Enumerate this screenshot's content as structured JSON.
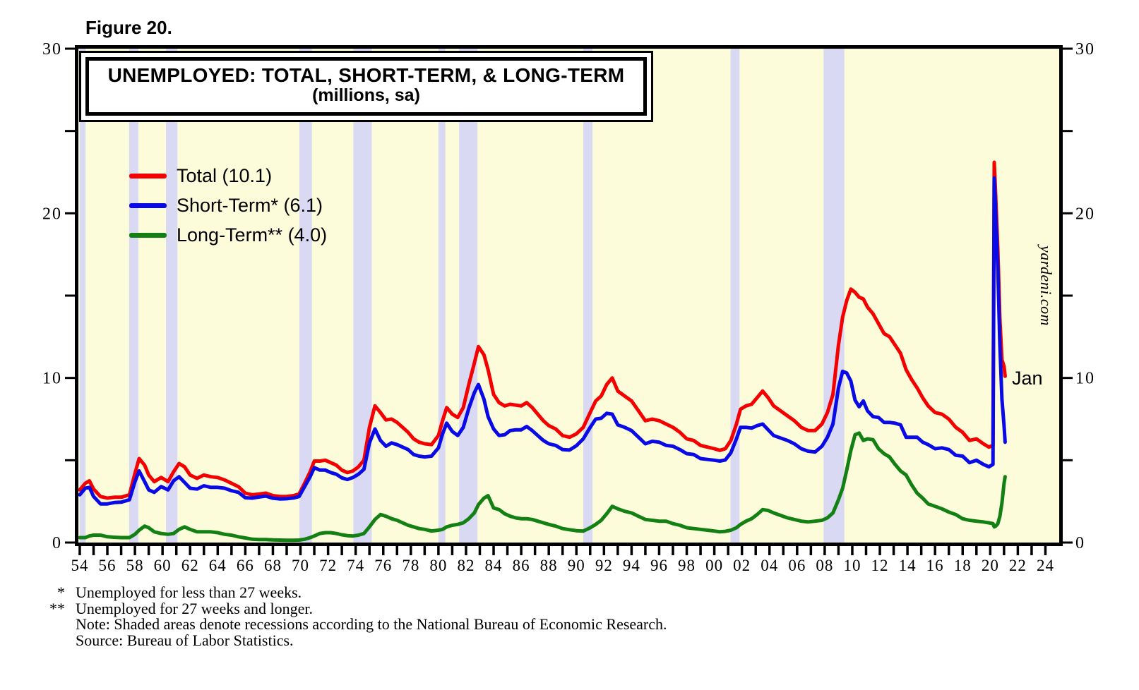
{
  "figure_label": "Figure 20.",
  "title": {
    "line1": "UNEMPLOYED: TOTAL, SHORT-TERM, & LONG-TERM",
    "line2": "(millions, sa)"
  },
  "annotations": {
    "last_point_label": "Jan",
    "watermark": "yardeni.com"
  },
  "footnotes": {
    "items": [
      {
        "marker": "*",
        "text": "Unemployed for less than 27 weeks."
      },
      {
        "marker": "**",
        "text": "Unemployed for 27 weeks and longer."
      },
      {
        "marker": "",
        "text": "Note: Shaded areas denote recessions according to the National Bureau of Economic Research."
      },
      {
        "marker": "",
        "text": "Source: Bureau of Labor Statistics."
      }
    ]
  },
  "colors": {
    "plot_bg": "#FCFCDB",
    "recession_band": "#D9D9F3",
    "axis": "#000000",
    "total": "#F40000",
    "short_term": "#0A0AE6",
    "long_term": "#128012"
  },
  "chart_data": {
    "type": "line",
    "title": "UNEMPLOYED: TOTAL, SHORT-TERM, & LONG-TERM (millions, sa)",
    "ylim": [
      0,
      30
    ],
    "x_range": [
      1953.9,
      2025.0
    ],
    "grid": false,
    "legend_position": "upper-left",
    "y_ticks": [
      0,
      10,
      20,
      30
    ],
    "y_tick_labels": [
      "0",
      "10",
      "20",
      "30"
    ],
    "y_minor_ticks": [
      5,
      15,
      25
    ],
    "x_label_start_year": 1954,
    "x_label_step": 2,
    "x_labels": [
      "54",
      "56",
      "58",
      "60",
      "62",
      "64",
      "66",
      "68",
      "70",
      "72",
      "74",
      "76",
      "78",
      "80",
      "82",
      "84",
      "86",
      "88",
      "90",
      "92",
      "94",
      "96",
      "98",
      "00",
      "02",
      "04",
      "06",
      "08",
      "10",
      "12",
      "14",
      "16",
      "18",
      "20",
      "22",
      "24"
    ],
    "recessions": [
      [
        1954.0,
        1954.42
      ],
      [
        1957.58,
        1958.25
      ],
      [
        1960.25,
        1961.08
      ],
      [
        1969.92,
        1970.83
      ],
      [
        1973.83,
        1975.17
      ],
      [
        1980.0,
        1980.5
      ],
      [
        1981.5,
        1982.83
      ],
      [
        1990.5,
        1991.17
      ],
      [
        2001.17,
        2001.83
      ],
      [
        2007.92,
        2009.42
      ]
    ],
    "x": [
      1954.0,
      1954.4,
      1954.7,
      1955.0,
      1955.5,
      1956.0,
      1956.5,
      1957.0,
      1957.6,
      1958.0,
      1958.3,
      1958.7,
      1959.0,
      1959.4,
      1959.9,
      1960.4,
      1960.8,
      1961.2,
      1961.6,
      1962.0,
      1962.5,
      1963.0,
      1963.5,
      1964.0,
      1964.5,
      1965.0,
      1965.5,
      1966.0,
      1966.5,
      1967.0,
      1967.5,
      1968.0,
      1968.5,
      1969.0,
      1969.5,
      1969.9,
      1970.3,
      1970.7,
      1971.0,
      1971.4,
      1971.8,
      1972.2,
      1972.6,
      1973.0,
      1973.4,
      1973.8,
      1974.2,
      1974.6,
      1975.0,
      1975.4,
      1975.8,
      1976.2,
      1976.6,
      1977.0,
      1977.4,
      1977.8,
      1978.2,
      1978.6,
      1979.0,
      1979.5,
      1980.0,
      1980.3,
      1980.6,
      1981.0,
      1981.4,
      1981.8,
      1982.2,
      1982.6,
      1982.9,
      1983.3,
      1983.6,
      1984.0,
      1984.4,
      1984.8,
      1985.2,
      1985.6,
      1986.0,
      1986.4,
      1986.8,
      1987.2,
      1987.6,
      1988.0,
      1988.5,
      1989.0,
      1989.5,
      1990.0,
      1990.5,
      1991.0,
      1991.4,
      1991.8,
      1992.2,
      1992.6,
      1993.0,
      1993.5,
      1994.0,
      1994.5,
      1995.0,
      1995.5,
      1996.0,
      1996.5,
      1997.0,
      1997.5,
      1998.0,
      1998.5,
      1999.0,
      1999.5,
      2000.0,
      2000.4,
      2000.8,
      2001.2,
      2001.6,
      2001.9,
      2002.3,
      2002.7,
      2003.1,
      2003.5,
      2003.9,
      2004.3,
      2004.8,
      2005.3,
      2005.8,
      2006.3,
      2006.8,
      2007.3,
      2007.8,
      2008.2,
      2008.6,
      2009.0,
      2009.3,
      2009.6,
      2009.9,
      2010.2,
      2010.5,
      2010.8,
      2011.1,
      2011.5,
      2011.9,
      2012.3,
      2012.7,
      2013.1,
      2013.5,
      2013.9,
      2014.3,
      2014.7,
      2015.1,
      2015.5,
      2016.0,
      2016.5,
      2017.0,
      2017.5,
      2018.0,
      2018.5,
      2019.0,
      2019.5,
      2019.9,
      2020.2,
      2020.29,
      2020.4,
      2020.55,
      2020.7,
      2020.85,
      2021.0,
      2021.08
    ],
    "series": [
      {
        "name": "total",
        "label": "Total (10.1)",
        "latest_value": 10.1,
        "color": "#F40000",
        "values": [
          3.2,
          3.6,
          3.75,
          3.25,
          2.8,
          2.7,
          2.75,
          2.75,
          2.9,
          4.2,
          5.1,
          4.7,
          4.1,
          3.7,
          3.95,
          3.7,
          4.3,
          4.8,
          4.6,
          4.1,
          3.9,
          4.1,
          4.0,
          3.95,
          3.8,
          3.6,
          3.4,
          3.0,
          2.9,
          2.95,
          3.0,
          2.85,
          2.8,
          2.8,
          2.85,
          2.95,
          3.6,
          4.3,
          4.95,
          4.95,
          5.0,
          4.85,
          4.7,
          4.4,
          4.25,
          4.35,
          4.6,
          5.0,
          7.0,
          8.3,
          7.9,
          7.45,
          7.5,
          7.3,
          7.0,
          6.7,
          6.3,
          6.1,
          6.0,
          5.95,
          6.5,
          7.4,
          8.2,
          7.8,
          7.6,
          8.2,
          9.6,
          10.9,
          11.9,
          11.4,
          10.5,
          9.0,
          8.5,
          8.3,
          8.4,
          8.35,
          8.3,
          8.5,
          8.2,
          7.8,
          7.4,
          7.1,
          6.9,
          6.5,
          6.4,
          6.6,
          7.0,
          7.9,
          8.6,
          8.9,
          9.6,
          10.0,
          9.2,
          8.9,
          8.6,
          8.0,
          7.4,
          7.5,
          7.4,
          7.2,
          7.0,
          6.7,
          6.3,
          6.2,
          5.9,
          5.8,
          5.7,
          5.6,
          5.7,
          6.2,
          7.2,
          8.1,
          8.3,
          8.4,
          8.8,
          9.2,
          8.8,
          8.3,
          8.0,
          7.7,
          7.4,
          7.0,
          6.8,
          6.8,
          7.2,
          7.9,
          9.0,
          12.0,
          13.7,
          14.7,
          15.4,
          15.2,
          14.9,
          14.8,
          14.3,
          13.9,
          13.3,
          12.7,
          12.5,
          12.0,
          11.5,
          10.5,
          9.9,
          9.4,
          8.8,
          8.3,
          7.9,
          7.8,
          7.5,
          7.0,
          6.7,
          6.2,
          6.3,
          6.0,
          5.8,
          5.9,
          23.1,
          21.0,
          17.75,
          13.55,
          11.1,
          10.7,
          10.1
        ]
      },
      {
        "name": "short_term",
        "label": "Short-Term* (6.1)",
        "latest_value": 6.1,
        "color": "#0A0AE6",
        "values": [
          2.9,
          3.3,
          3.35,
          2.8,
          2.35,
          2.35,
          2.43,
          2.45,
          2.6,
          3.7,
          4.35,
          3.7,
          3.2,
          3.05,
          3.4,
          3.2,
          3.75,
          4.0,
          3.65,
          3.3,
          3.25,
          3.45,
          3.35,
          3.35,
          3.3,
          3.15,
          3.05,
          2.72,
          2.7,
          2.77,
          2.82,
          2.69,
          2.65,
          2.66,
          2.71,
          2.8,
          3.4,
          4.0,
          4.55,
          4.4,
          4.4,
          4.25,
          4.15,
          3.93,
          3.83,
          3.95,
          4.15,
          4.45,
          6.05,
          6.9,
          6.2,
          5.85,
          6.05,
          5.95,
          5.8,
          5.65,
          5.35,
          5.25,
          5.2,
          5.25,
          5.75,
          6.6,
          7.25,
          6.75,
          6.5,
          7.0,
          8.15,
          9.1,
          9.6,
          8.7,
          7.65,
          6.9,
          6.5,
          6.55,
          6.8,
          6.85,
          6.85,
          7.05,
          6.8,
          6.5,
          6.2,
          6.0,
          5.9,
          5.65,
          5.62,
          5.88,
          6.3,
          7.0,
          7.5,
          7.55,
          7.85,
          7.8,
          7.15,
          7.0,
          6.8,
          6.4,
          6.0,
          6.15,
          6.1,
          5.9,
          5.85,
          5.65,
          5.4,
          5.35,
          5.1,
          5.05,
          5.0,
          4.95,
          5.02,
          5.45,
          6.3,
          7.0,
          7.0,
          6.95,
          7.1,
          7.2,
          6.85,
          6.5,
          6.35,
          6.2,
          6.0,
          5.7,
          5.55,
          5.5,
          5.85,
          6.4,
          7.2,
          9.4,
          10.4,
          10.3,
          9.8,
          8.65,
          8.25,
          8.6,
          8.0,
          7.65,
          7.6,
          7.3,
          7.3,
          7.25,
          7.15,
          6.4,
          6.4,
          6.4,
          6.1,
          5.95,
          5.7,
          5.75,
          5.65,
          5.3,
          5.25,
          4.85,
          5.0,
          4.75,
          4.6,
          4.75,
          22.15,
          20.0,
          16.6,
          11.95,
          8.7,
          7.1,
          6.1
        ]
      },
      {
        "name": "long_term",
        "label": "Long-Term** (4.0)",
        "latest_value": 4.0,
        "color": "#128012",
        "values": [
          0.3,
          0.3,
          0.4,
          0.45,
          0.45,
          0.35,
          0.32,
          0.3,
          0.3,
          0.5,
          0.75,
          1.0,
          0.9,
          0.65,
          0.55,
          0.5,
          0.55,
          0.8,
          0.95,
          0.8,
          0.65,
          0.65,
          0.65,
          0.6,
          0.5,
          0.45,
          0.35,
          0.28,
          0.2,
          0.18,
          0.18,
          0.16,
          0.15,
          0.14,
          0.14,
          0.15,
          0.2,
          0.3,
          0.4,
          0.55,
          0.6,
          0.6,
          0.55,
          0.47,
          0.42,
          0.4,
          0.45,
          0.55,
          0.95,
          1.4,
          1.7,
          1.6,
          1.45,
          1.35,
          1.2,
          1.05,
          0.95,
          0.85,
          0.8,
          0.7,
          0.75,
          0.8,
          0.95,
          1.05,
          1.1,
          1.2,
          1.45,
          1.8,
          2.3,
          2.7,
          2.85,
          2.1,
          2.0,
          1.75,
          1.6,
          1.5,
          1.45,
          1.45,
          1.4,
          1.3,
          1.2,
          1.1,
          1.0,
          0.85,
          0.78,
          0.72,
          0.7,
          0.9,
          1.1,
          1.35,
          1.75,
          2.2,
          2.05,
          1.9,
          1.8,
          1.6,
          1.4,
          1.35,
          1.3,
          1.3,
          1.15,
          1.05,
          0.9,
          0.85,
          0.8,
          0.75,
          0.7,
          0.65,
          0.68,
          0.75,
          0.9,
          1.1,
          1.3,
          1.45,
          1.7,
          2.0,
          1.95,
          1.8,
          1.65,
          1.5,
          1.4,
          1.3,
          1.25,
          1.3,
          1.35,
          1.5,
          1.8,
          2.6,
          3.3,
          4.4,
          5.6,
          6.55,
          6.65,
          6.2,
          6.3,
          6.25,
          5.7,
          5.4,
          5.2,
          4.75,
          4.35,
          4.1,
          3.5,
          3.0,
          2.7,
          2.35,
          2.2,
          2.05,
          1.85,
          1.7,
          1.45,
          1.35,
          1.3,
          1.25,
          1.2,
          1.15,
          0.95,
          1.0,
          1.15,
          1.6,
          2.4,
          3.6,
          4.0
        ]
      }
    ]
  }
}
